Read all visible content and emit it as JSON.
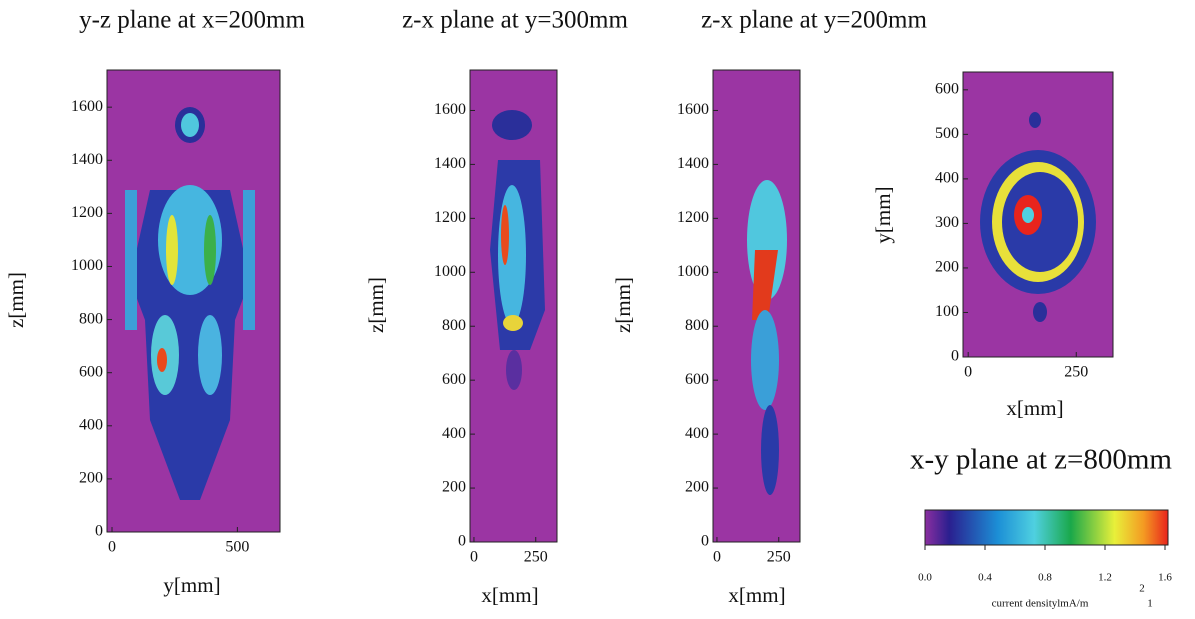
{
  "chart_data": [
    {
      "type": "heatmap",
      "title": "y-z plane at x=200mm",
      "xlabel": "y[mm]",
      "ylabel": "z[mm]",
      "xlim": [
        -20,
        670
      ],
      "ylim": [
        0,
        1740
      ],
      "xticks": [
        0,
        500
      ],
      "yticks": [
        0,
        200,
        400,
        600,
        800,
        1000,
        1200,
        1400,
        1600
      ]
    },
    {
      "type": "heatmap",
      "title": "z-x plane at y=300mm",
      "xlabel": "x[mm]",
      "ylabel": "z[mm]",
      "xlim": [
        -16,
        336
      ],
      "ylim": [
        0,
        1750
      ],
      "xticks": [
        0,
        250
      ],
      "yticks": [
        0,
        200,
        400,
        600,
        800,
        1000,
        1200,
        1400,
        1600
      ]
    },
    {
      "type": "heatmap",
      "title": "z-x plane at y=200mm",
      "xlabel": "x[mm]",
      "ylabel": "z[mm]",
      "xlim": [
        -16,
        336
      ],
      "ylim": [
        0,
        1750
      ],
      "xticks": [
        0,
        250
      ],
      "yticks": [
        0,
        200,
        400,
        600,
        800,
        1000,
        1200,
        1400,
        1600
      ]
    },
    {
      "type": "heatmap",
      "title": "x-y plane at z=800mm",
      "xlabel": "x[mm]",
      "ylabel": "y[mm]",
      "xlim": [
        -12,
        335
      ],
      "ylim": [
        0,
        640
      ],
      "xticks": [
        0,
        250
      ],
      "yticks": [
        0,
        100,
        200,
        300,
        400,
        500,
        600
      ]
    },
    {
      "type": "colorbar",
      "label": "current densitylmA/m",
      "label_superscript": "2",
      "label_suffix": "1",
      "xlim": [
        0,
        1.62
      ],
      "xticks": [
        {
          "value": 0,
          "label": "0.0"
        },
        0.4,
        0.8,
        1.2,
        1.6
      ]
    }
  ]
}
